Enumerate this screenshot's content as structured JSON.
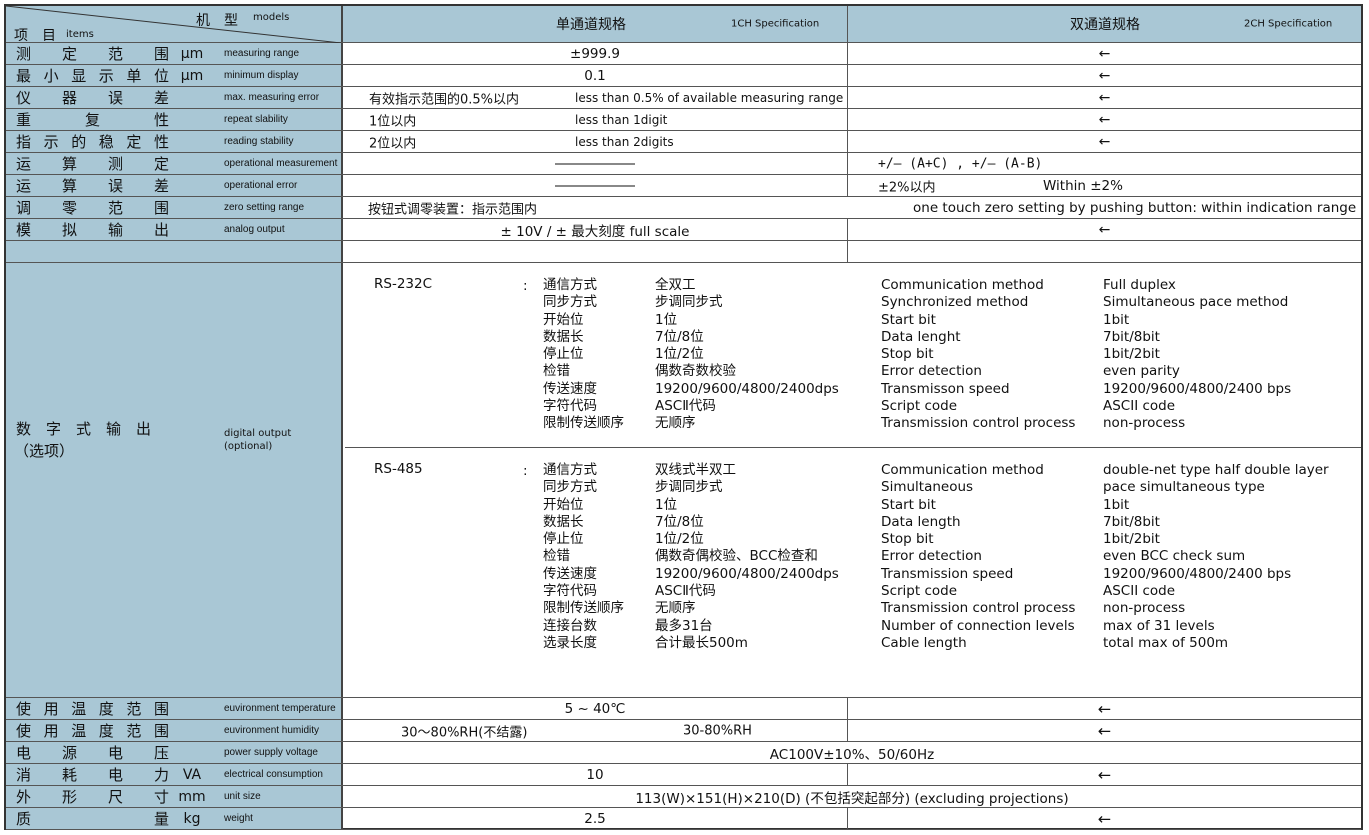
{
  "header": {
    "models_cn": "机　型",
    "models_en": "models",
    "items_cn": "项　目",
    "items_en": "items",
    "ch1_cn": "单通道规格",
    "ch1_en": "1CH Specification",
    "ch2_cn": "双通道规格",
    "ch2_en": "2CH Specification"
  },
  "same_symbol": "←",
  "rows_top": [
    {
      "cn": "测定范围",
      "unit": "μm",
      "en": "measuring range",
      "c1": "±999.9",
      "c2": "←"
    },
    {
      "cn": "最小显示单位",
      "unit": "μm",
      "en": "minimum display",
      "c1": "0.1",
      "c2": "←"
    },
    {
      "cn": "仪器误差",
      "unit": "",
      "en": "max. measuring error",
      "c1_cn": "有效指示范围的0.5%以内",
      "c1_en": "less than 0.5% of available measuring range",
      "c2": "←"
    },
    {
      "cn": "重复性",
      "unit": "",
      "en": "repeat slability",
      "c1_cn": "1位以内",
      "c1_en": "less than 1digit",
      "c2": "←"
    },
    {
      "cn": "指示的稳定性",
      "unit": "",
      "en": "reading stability",
      "c1_cn": "2位以内",
      "c1_en": "less than 2digits",
      "c2": "←"
    },
    {
      "cn": "运算测定",
      "unit": "",
      "en": "operational measurement",
      "c2": "+/— (A+C) , +/— (A-B)"
    },
    {
      "cn": "运算误差",
      "unit": "",
      "en": "operational error",
      "c2_cn": "±2%以内",
      "c2_en": "Within ±2%"
    },
    {
      "cn": "调零范围",
      "unit": "",
      "en": "zero setting range",
      "c1": "按钮式调零装置：指示范围内",
      "c2": "one touch zero setting by pushing button: within indication range"
    },
    {
      "cn": "模拟输出",
      "unit": "",
      "en": "analog output",
      "c1": "± 10V / ± 最大刻度 full scale",
      "c2": "←"
    }
  ],
  "digital": {
    "cn": "数　字　式　输　出",
    "cn2": "（选项）",
    "en": "digital output",
    "en2": "(optional)",
    "rs232": {
      "name": "RS-232C",
      "colon": ":",
      "cn_labels": [
        "通信方式",
        "同步方式",
        "开始位",
        "数据长",
        "停止位",
        "检错",
        "传送速度",
        "字符代码",
        "限制传送顺序"
      ],
      "cn_values": [
        "全双工",
        "步调同步式",
        "1位",
        "7位/8位",
        "1位/2位",
        "偶数奇数校验",
        "19200/9600/4800/2400dps",
        "ASCⅡ代码",
        "无顺序"
      ],
      "en_labels": [
        "Communication method",
        "Synchronized method",
        "Start bit",
        "Data lenght",
        "Stop bit",
        "Error detection",
        "Transmisson speed",
        "Script code",
        "Transmission control process"
      ],
      "en_values": [
        "Full duplex",
        "Simultaneous pace method",
        "1bit",
        "7bit/8bit",
        "1bit/2bit",
        "even parity",
        "19200/9600/4800/2400 bps",
        "ASCII code",
        "non-process"
      ]
    },
    "rs485": {
      "name": "RS-485",
      "colon": ":",
      "cn_labels": [
        "通信方式",
        "同步方式",
        "开始位",
        "数据长",
        "停止位",
        "检错",
        "传送速度",
        "字符代码",
        "限制传送顺序",
        "连接台数",
        "选录长度"
      ],
      "cn_values": [
        "双线式半双工",
        "步调同步式",
        "1位",
        "7位/8位",
        "1位/2位",
        "偶数奇偶校验、BCC检查和",
        "19200/9600/4800/2400dps",
        "ASCⅡ代码",
        "无顺序",
        "最多31台",
        "合计最长500m"
      ],
      "en_labels": [
        "Communication method",
        "Simultaneous",
        "Start bit",
        "Data length",
        "Stop bit",
        "Error detection",
        "Transmission speed",
        "Script code",
        "Transmission control process",
        "Number of connection levels",
        "Cable length"
      ],
      "en_values": [
        "double-net type half double layer",
        "pace simultaneous type",
        "1bit",
        "7bit/8bit",
        "1bit/2bit",
        "even BCC check sum",
        "19200/9600/4800/2400 bps",
        "ASCII code",
        "non-process",
        "max of 31 levels",
        "total max of 500m"
      ]
    }
  },
  "rows_bottom": [
    {
      "cn": "使用温度范围",
      "unit": "",
      "en": "euvironment temperature",
      "c1": "5 ~ 40℃",
      "c2": "←"
    },
    {
      "cn": "使用温度范围",
      "unit": "",
      "en": "euvironment humidity",
      "c1_cn": "30～80%RH(不结露)",
      "c1_en": "30-80%RH",
      "c2": "←"
    },
    {
      "cn": "电源电压",
      "unit": "",
      "en": "power supply voltage",
      "span": "AC100V±10%、50/60Hz"
    },
    {
      "cn": "消耗电力",
      "unit": "VA",
      "en": "electrical consumption",
      "c1": "10",
      "c2": "←"
    },
    {
      "cn": "外形尺寸",
      "unit": "mm",
      "en": "unit size",
      "span": "113(W)×151(H)×210(D) (不包括突起部分) (excluding projections)"
    },
    {
      "cn": "质量",
      "unit": "kg",
      "en": "weight",
      "c1": "2.5",
      "c2": "←"
    }
  ]
}
